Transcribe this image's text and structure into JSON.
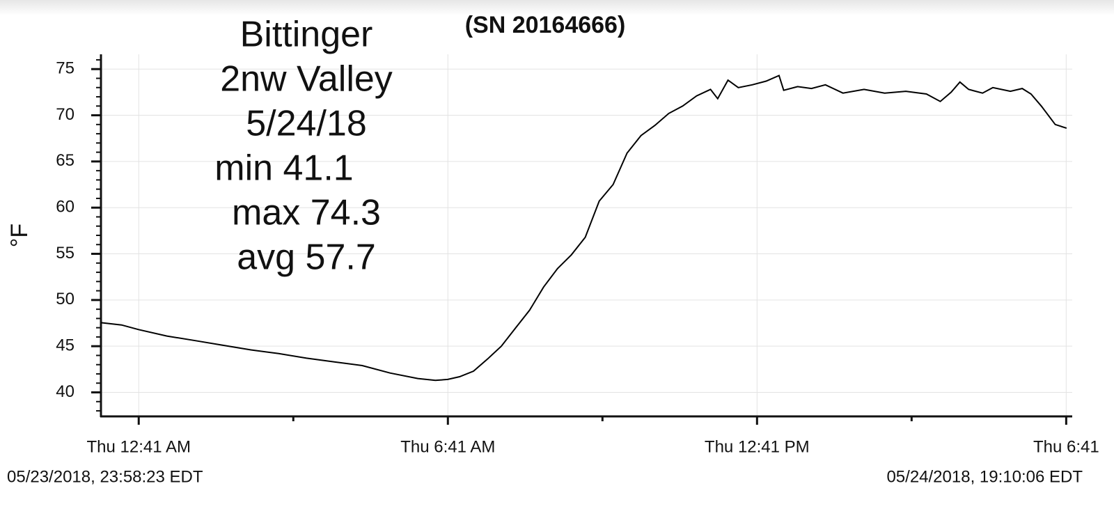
{
  "chart_data": {
    "type": "line",
    "title": "(SN 20164666)",
    "annotations": [
      "Bittinger",
      "2nw Valley",
      "5/24/18",
      "min 41.1",
      "max 74.3",
      "avg 57.7"
    ],
    "y_label": "°F",
    "start_time": "05/23/2018, 23:58:23 EDT",
    "end_time": "05/24/2018, 19:10:06 EDT",
    "x": [
      -0.05,
      0.35,
      0.68,
      1.23,
      1.78,
      2.32,
      2.86,
      3.4,
      3.94,
      4.48,
      5.02,
      5.56,
      6.1,
      6.44,
      6.68,
      6.91,
      7.18,
      7.45,
      7.72,
      8.0,
      8.27,
      8.54,
      8.81,
      9.08,
      9.35,
      9.62,
      9.89,
      10.16,
      10.43,
      10.7,
      10.97,
      11.24,
      11.51,
      11.78,
      11.92,
      12.12,
      12.32,
      12.59,
      12.86,
      13.11,
      13.2,
      13.47,
      13.74,
      14.01,
      14.35,
      14.76,
      15.16,
      15.57,
      15.97,
      16.24,
      16.45,
      16.62,
      16.79,
      17.06,
      17.26,
      17.6,
      17.83,
      18.0,
      18.2,
      18.47,
      18.69
    ],
    "series": [
      {
        "color": "#000000",
        "values": [
          47.55,
          47.3,
          46.8,
          46.1,
          45.6,
          45.1,
          44.6,
          44.2,
          43.7,
          43.3,
          42.9,
          42.1,
          41.5,
          41.3,
          41.4,
          41.7,
          42.3,
          43.6,
          45.0,
          47.0,
          48.9,
          51.4,
          53.4,
          54.9,
          56.8,
          60.7,
          62.5,
          65.9,
          67.8,
          68.9,
          70.2,
          71.0,
          72.1,
          72.8,
          71.8,
          73.8,
          73.0,
          73.3,
          73.7,
          74.3,
          72.7,
          73.1,
          72.9,
          73.3,
          72.4,
          72.8,
          72.4,
          72.6,
          72.3,
          71.5,
          72.5,
          73.6,
          72.8,
          72.4,
          73.0,
          72.6,
          72.9,
          72.3,
          71.0,
          69.0,
          68.6
        ]
      }
    ],
    "xlim": [
      -0.05,
      18.8
    ],
    "xticks": [
      {
        "value": 0.683,
        "label": "Thu 12:41 AM"
      },
      {
        "value": 6.683,
        "label": "Thu 6:41 AM"
      },
      {
        "value": 12.683,
        "label": "Thu 12:41 PM"
      },
      {
        "value": 18.683,
        "label": "Thu 6:41"
      }
    ],
    "xminorticks": [
      3.683,
      9.683,
      15.683
    ],
    "ylim": [
      37.4,
      76.6
    ],
    "yticks": [
      40,
      45,
      50,
      55,
      60,
      65,
      70,
      75
    ],
    "yminor_step": 1,
    "grid": true
  }
}
